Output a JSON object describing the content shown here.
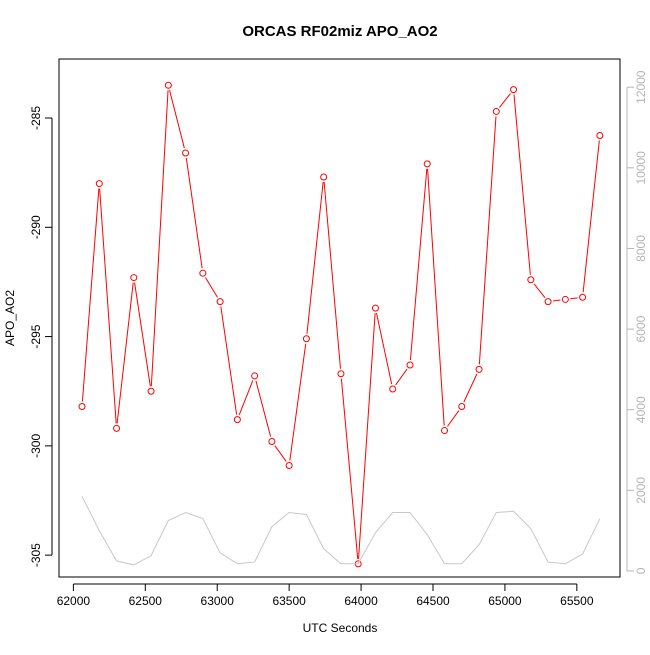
{
  "chart_data": {
    "type": "line",
    "title": "ORCAS RF02miz APO_AO2",
    "xlabel": "UTC Seconds",
    "ylabel": "APO_AO2",
    "xlim": [
      61900,
      65800
    ],
    "ylim": [
      -306.0,
      -282.3
    ],
    "y2lim": [
      -150,
      12700
    ],
    "x_ticks": [
      62000,
      62500,
      63000,
      63500,
      64000,
      64500,
      65000,
      65500
    ],
    "y_ticks": [
      -305,
      -300,
      -295,
      -290,
      -285
    ],
    "y2_ticks": [
      0,
      2000,
      4000,
      6000,
      8000,
      10000,
      12000
    ],
    "grid": false,
    "legend": "none",
    "colors": {
      "primary": "#ff0000",
      "secondary": "#c8c8c8",
      "right_axis": "#b5b5b5",
      "axis": "#000000"
    },
    "series": [
      {
        "axis": "left",
        "style": "line-with-open-circles",
        "x": [
          62060,
          62180,
          62300,
          62420,
          62540,
          62660,
          62780,
          62900,
          63020,
          63140,
          63260,
          63380,
          63500,
          63620,
          63740,
          63860,
          63980,
          64100,
          64220,
          64340,
          64460,
          64580,
          64700,
          64820,
          64940,
          65060,
          65180,
          65300,
          65420,
          65540,
          65660
        ],
        "values": [
          -298.2,
          -288.0,
          -299.2,
          -292.3,
          -297.5,
          -283.5,
          -286.6,
          -292.1,
          -293.4,
          -298.8,
          -296.8,
          -299.8,
          -300.9,
          -295.1,
          -287.7,
          -296.7,
          -305.4,
          -293.7,
          -297.4,
          -296.3,
          -287.1,
          -299.3,
          -298.2,
          -296.5,
          -284.7,
          -283.7,
          -292.4,
          -293.4,
          -293.3,
          -293.2,
          -285.8
        ]
      },
      {
        "axis": "right",
        "style": "line",
        "x": [
          62060,
          62180,
          62300,
          62420,
          62540,
          62660,
          62780,
          62900,
          63020,
          63140,
          63260,
          63380,
          63500,
          63620,
          63740,
          63860,
          63980,
          64100,
          64220,
          64340,
          64460,
          64580,
          64700,
          64820,
          64940,
          65060,
          65180,
          65300,
          65420,
          65540,
          65660
        ],
        "values": [
          1850,
          1000,
          250,
          150,
          380,
          1250,
          1450,
          1300,
          450,
          180,
          220,
          1100,
          1450,
          1400,
          550,
          180,
          180,
          950,
          1450,
          1450,
          900,
          180,
          180,
          650,
          1450,
          1480,
          1050,
          220,
          180,
          420,
          1300
        ]
      }
    ]
  }
}
